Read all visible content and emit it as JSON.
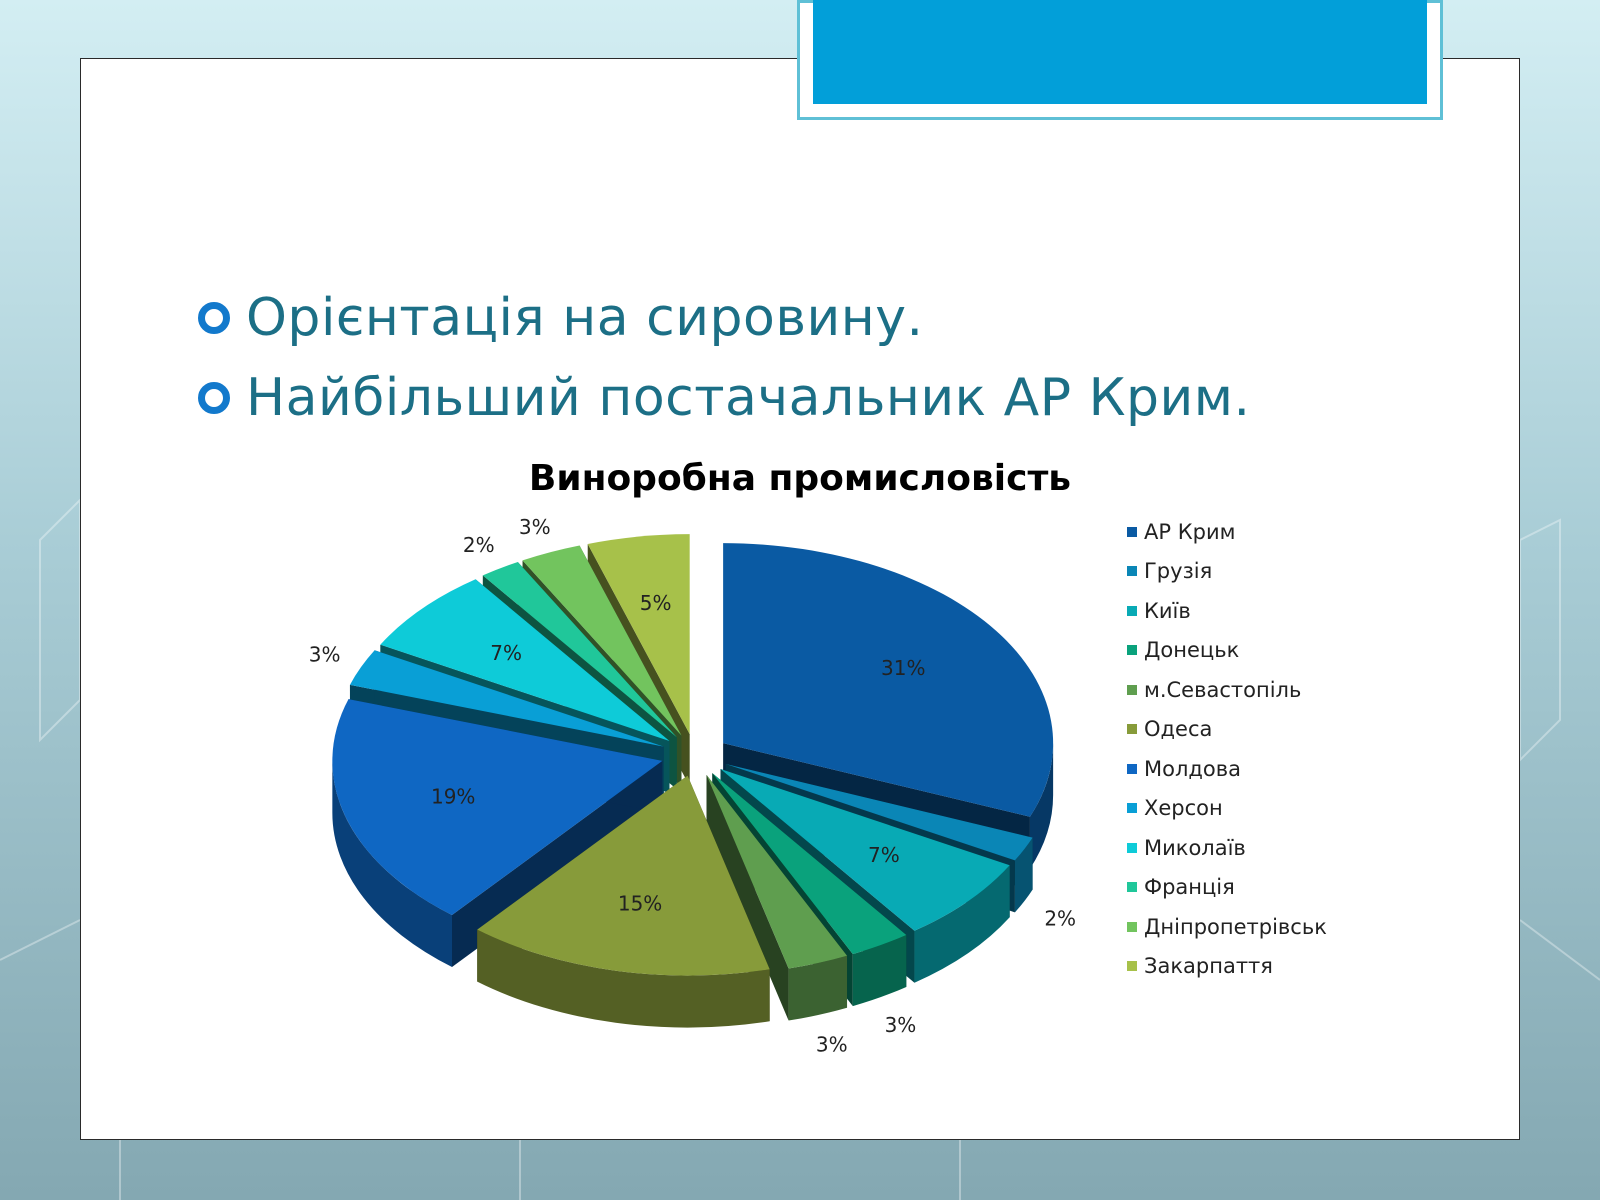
{
  "slide": {
    "bullets": [
      "Орієнтація на сировину.",
      "Найбільший постачальник АР Крим."
    ]
  },
  "chart_data": {
    "type": "pie",
    "title": "Виноробна промисловість",
    "categories": [
      "АР Крим",
      "Грузія",
      "Київ",
      "Донецьк",
      "м.Севастопіль",
      "Одеса",
      "Молдова",
      "Херсон",
      "Миколаїв",
      "Франція",
      "Дніпропетрівськ",
      "Закарпаття"
    ],
    "values": [
      31,
      2,
      7,
      3,
      3,
      15,
      19,
      3,
      7,
      2,
      3,
      5
    ],
    "labels": [
      "31%",
      "2%",
      "7%",
      "3%",
      "3%",
      "15%",
      "19%",
      "3%",
      "7%",
      "2%",
      "3%",
      "5%"
    ],
    "colors": [
      "#0a5aa3",
      "#0a86b6",
      "#08aab5",
      "#0aa27c",
      "#5f9e4f",
      "#879b3a",
      "#0f67c3",
      "#099fd6",
      "#0ecbd8",
      "#20c79a",
      "#72c45e",
      "#a7c14a"
    ],
    "legend_position": "right",
    "style": "3d exploded"
  }
}
